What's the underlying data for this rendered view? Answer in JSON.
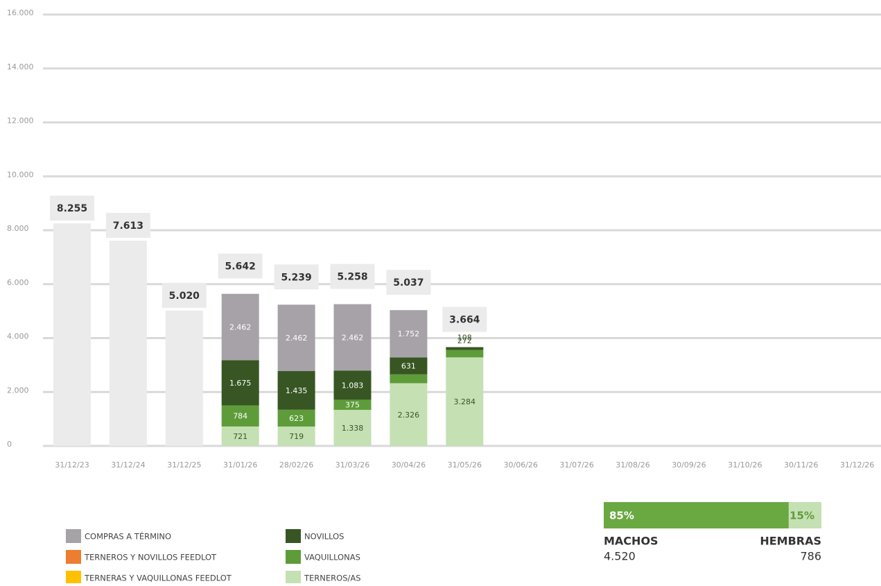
{
  "chart_data": {
    "type": "stacked_bar",
    "categories": [
      "31/12/23",
      "31/12/24",
      "31/12/25",
      "31/01/26",
      "28/02/26",
      "31/03/26",
      "30/04/26",
      "31/05/26",
      "30/06/26",
      "31/07/26",
      "31/08/26",
      "30/09/26",
      "31/10/26",
      "30/11/26",
      "31/12/26"
    ],
    "ylim": [
      0,
      16000
    ],
    "yticks": [
      0,
      {
        "value": 2000,
        "label": "2.000"
      },
      {
        "value": 4000,
        "label": "4.000"
      },
      {
        "value": 6000,
        "label": "6.000"
      },
      {
        "value": 8000,
        "label": "8.000"
      },
      {
        "value": 10000,
        "label": "10.000"
      },
      {
        "value": 12000,
        "label": "12.000"
      },
      {
        "value": 14000,
        "label": "14.000"
      },
      {
        "value": 16000,
        "label": "16.000"
      }
    ],
    "grid": true,
    "totals": {
      "color": "#ebebeb",
      "values": [
        8255,
        7613,
        5020,
        5642,
        5239,
        5258,
        5037,
        3664,
        null,
        null,
        null,
        null,
        null,
        null,
        null
      ],
      "value_labels": [
        "8.255",
        "7.613",
        "5.020",
        "5.642",
        "5.239",
        "5.258",
        "5.037",
        "3.664",
        null,
        null,
        null,
        null,
        null,
        null,
        null
      ]
    },
    "series": [
      {
        "name": "COMPRAS A TÉRMINO",
        "color": "#a7a2a8",
        "label_color": "#ffffff",
        "values": [
          null,
          null,
          null,
          2462,
          2462,
          2462,
          1752,
          null,
          null,
          null,
          null,
          null,
          null,
          null,
          null
        ],
        "value_labels": [
          null,
          null,
          null,
          "2.462",
          "2.462",
          "2.462",
          "1.752",
          null,
          null,
          null,
          null,
          null,
          null,
          null,
          null
        ]
      },
      {
        "name": "TERNEROS Y NOVILLOS FEEDLOT",
        "color": "#ed7d31",
        "label_color": "#ffffff",
        "values": [
          null,
          null,
          null,
          null,
          null,
          null,
          null,
          null,
          null,
          null,
          null,
          null,
          null,
          null,
          null
        ]
      },
      {
        "name": "TERNERAS Y VAQUILLONAS FEEDLOT",
        "color": "#ffc000",
        "label_color": "#ffffff",
        "values": [
          null,
          null,
          null,
          null,
          null,
          null,
          null,
          null,
          null,
          null,
          null,
          null,
          null,
          null,
          null
        ]
      },
      {
        "name": "NOVILLOS",
        "color": "#375623",
        "label_color": "#ffffff",
        "values": [
          null,
          null,
          null,
          1675,
          1435,
          1083,
          631,
          108,
          null,
          null,
          null,
          null,
          null,
          null,
          null
        ],
        "value_labels": [
          null,
          null,
          null,
          "1.675",
          "1.435",
          "1.083",
          "631",
          "108",
          null,
          null,
          null,
          null,
          null,
          null,
          null
        ]
      },
      {
        "name": "VAQUILLONAS",
        "color": "#5e9c3a",
        "label_color": "#ffffff",
        "values": [
          null,
          null,
          null,
          784,
          623,
          375,
          328,
          272,
          null,
          null,
          null,
          null,
          null,
          null,
          null
        ],
        "value_labels": [
          null,
          null,
          null,
          "784",
          "623",
          "375",
          "328",
          "272",
          null,
          null,
          null,
          null,
          null,
          null,
          null
        ]
      },
      {
        "name": "TERNEROS/AS",
        "color": "#c5e0b3",
        "label_color": "#375623",
        "values": [
          null,
          null,
          null,
          721,
          719,
          1338,
          2326,
          3284,
          null,
          null,
          null,
          null,
          null,
          null,
          null
        ],
        "value_labels": [
          null,
          null,
          null,
          "721",
          "719",
          "1.338",
          "2.326",
          "3.284",
          null,
          null,
          null,
          null,
          null,
          null,
          null
        ]
      }
    ]
  },
  "sex_split": [
    {
      "label": "MACHOS",
      "count": "4.520",
      "percent": 85,
      "percent_label": "85%",
      "color": "#6aa842",
      "text_color": "#ffffff"
    },
    {
      "label": "HEMBRAS",
      "count": "786",
      "percent": 15,
      "percent_label": "15%",
      "color": "#c5e0b3",
      "text_color": "#5e9c3a"
    }
  ]
}
